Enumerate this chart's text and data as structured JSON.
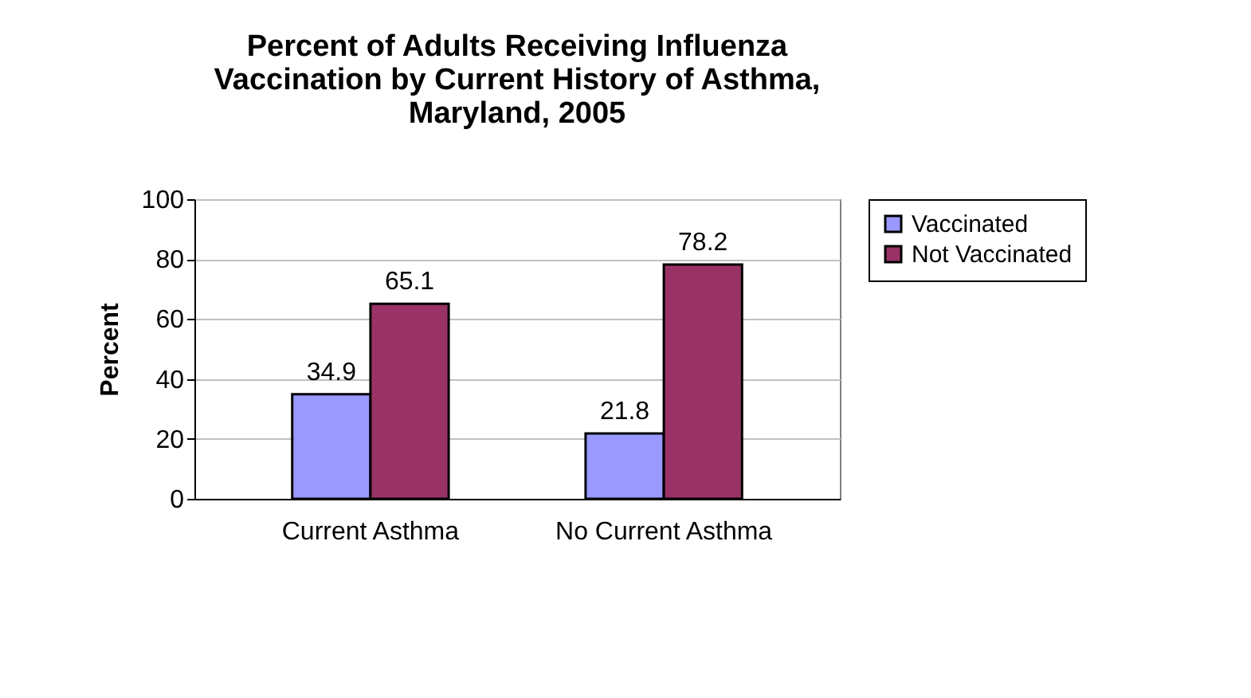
{
  "chart_data": {
    "type": "bar",
    "title": "Percent of Adults Receiving Influenza Vaccination by Current History of Asthma, Maryland, 2005",
    "ylabel": "Percent",
    "categories": [
      "Current Asthma",
      "No Current Asthma"
    ],
    "series": [
      {
        "name": "Vaccinated",
        "color": "#9999ff",
        "values": [
          34.9,
          21.8
        ]
      },
      {
        "name": "Not Vaccinated",
        "color": "#993366",
        "values": [
          65.1,
          78.2
        ]
      }
    ],
    "ylim": [
      0,
      100
    ],
    "yticks": [
      0,
      20,
      40,
      60,
      80,
      100
    ],
    "grid": "y",
    "legend": "right",
    "data_labels": true
  }
}
